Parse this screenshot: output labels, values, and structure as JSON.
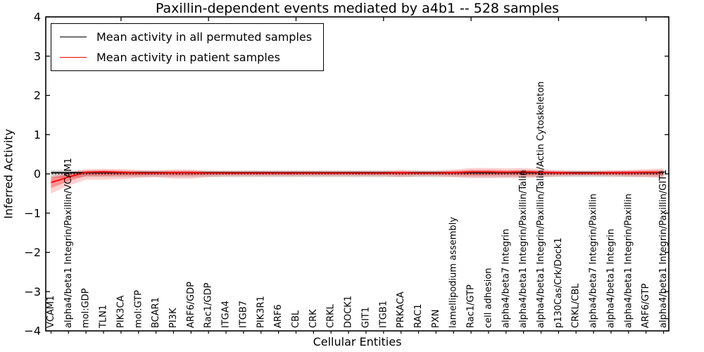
{
  "figure": {
    "background": "#ffffff"
  },
  "chart_data": {
    "type": "line",
    "title": "Paxillin-dependent events mediated by a4b1 -- 528 samples",
    "xlabel": "Cellular Entities",
    "ylabel": "Inferred Activity",
    "ylim": [
      -4,
      4
    ],
    "yticks": [
      4,
      3,
      2,
      1,
      0,
      -1,
      -2,
      -3,
      -4
    ],
    "ytick_labels": [
      "4",
      "3",
      "2",
      "1",
      "0",
      "−1",
      "−2",
      "−3",
      "−4"
    ],
    "grid": false,
    "legend_position": "upper left",
    "zero_line": {
      "y": 0,
      "style": "dotted",
      "color": "#000000"
    },
    "categories": [
      "VCAM1",
      "alpha4/beta1 Integrin/Paxillin/VCAM1",
      "mol:GDP",
      "TLN1",
      "PIK3CA",
      "mol:GTP",
      "BCAR1",
      "PI3K",
      "ARF6/GDP",
      "Rac1/GDP",
      "ITGA4",
      "ITGB7",
      "PIK3R1",
      "ARF6",
      "CBL",
      "CRK",
      "CRKL",
      "DOCK1",
      "GIT1",
      "ITGB1",
      "PRKACA",
      "RAC1",
      "PXN",
      "lamellipodium assembly",
      "Rac1/GTP",
      "cell adhesion",
      "alpha4/beta7 Integrin",
      "alpha4/beta1 Integrin/Paxillin/Talin",
      "alpha4/beta1 Integrin/Paxillin/Talin/Actin Cytoskeleton",
      "p130Cas/Crk/Dock1",
      "CRKL/CBL",
      "alpha4/beta7 Integrin/Paxillin",
      "alpha4/beta1 Integrin",
      "alpha4/beta1 Integrin/Paxillin",
      "ARF6/GTP",
      "alpha4/beta1 Integrin/Paxillin/GIT1"
    ],
    "series": [
      {
        "name": "Mean activity in all permuted samples",
        "color": "#000000",
        "values": [
          0.03,
          0.03,
          0.03,
          0.03,
          0.03,
          0.03,
          0.03,
          0.03,
          0.03,
          0.03,
          0.03,
          0.03,
          0.03,
          0.03,
          0.03,
          0.03,
          0.03,
          0.03,
          0.03,
          0.03,
          0.03,
          0.03,
          0.03,
          0.03,
          0.03,
          0.03,
          0.03,
          0.03,
          0.03,
          0.03,
          0.03,
          0.03,
          0.03,
          0.03,
          0.03,
          0.03
        ]
      },
      {
        "name": "Mean activity in patient samples",
        "color": "#ff0000",
        "values": [
          -0.22,
          -0.08,
          0.04,
          0.05,
          0.04,
          0.02,
          0.02,
          0.03,
          0.03,
          0.02,
          0.02,
          0.02,
          0.02,
          0.02,
          0.02,
          0.02,
          0.02,
          0.02,
          0.02,
          0.02,
          0.03,
          0.02,
          0.02,
          0.03,
          0.05,
          0.05,
          0.04,
          0.05,
          0.04,
          0.03,
          0.02,
          0.02,
          0.03,
          0.03,
          0.04,
          0.04
        ]
      }
    ],
    "bands": [
      {
        "name": "permuted-range",
        "color": "#000000",
        "opacity": 0.15,
        "lower": [
          -0.11,
          -0.1,
          -0.08,
          -0.08,
          -0.08,
          -0.08,
          -0.08,
          -0.08,
          -0.08,
          -0.08,
          -0.08,
          -0.08,
          -0.08,
          -0.08,
          -0.08,
          -0.08,
          -0.08,
          -0.08,
          -0.08,
          -0.08,
          -0.08,
          -0.08,
          -0.08,
          -0.08,
          -0.08,
          -0.08,
          -0.08,
          -0.08,
          -0.08,
          -0.08,
          -0.08,
          -0.08,
          -0.08,
          -0.08,
          -0.08,
          -0.08
        ],
        "upper": [
          0.1,
          0.09,
          0.08,
          0.08,
          0.08,
          0.08,
          0.08,
          0.08,
          0.08,
          0.08,
          0.08,
          0.08,
          0.08,
          0.08,
          0.08,
          0.08,
          0.08,
          0.08,
          0.08,
          0.08,
          0.08,
          0.08,
          0.08,
          0.08,
          0.08,
          0.08,
          0.08,
          0.08,
          0.08,
          0.08,
          0.08,
          0.08,
          0.08,
          0.08,
          0.08,
          0.08
        ]
      },
      {
        "name": "patient-range-outer",
        "color": "#ff0000",
        "opacity": 0.18,
        "lower": [
          -0.5,
          -0.3,
          -0.15,
          -0.15,
          -0.13,
          -0.1,
          -0.08,
          -0.12,
          -0.12,
          -0.08,
          -0.06,
          -0.06,
          -0.06,
          -0.06,
          -0.06,
          -0.06,
          -0.06,
          -0.06,
          -0.06,
          -0.06,
          -0.08,
          -0.06,
          -0.06,
          -0.08,
          -0.11,
          -0.11,
          -0.1,
          -0.11,
          -0.08,
          -0.06,
          -0.05,
          -0.05,
          -0.06,
          -0.07,
          -0.08,
          -0.11
        ],
        "upper": [
          -0.06,
          0.04,
          0.12,
          0.13,
          0.12,
          0.1,
          0.09,
          0.11,
          0.11,
          0.08,
          0.08,
          0.08,
          0.08,
          0.08,
          0.08,
          0.08,
          0.08,
          0.08,
          0.08,
          0.08,
          0.1,
          0.08,
          0.08,
          0.11,
          0.15,
          0.15,
          0.14,
          0.15,
          0.12,
          0.09,
          0.08,
          0.08,
          0.09,
          0.1,
          0.12,
          0.14
        ]
      },
      {
        "name": "patient-range-inner",
        "color": "#ff0000",
        "opacity": 0.3,
        "lower": [
          -0.36,
          -0.19,
          -0.05,
          -0.05,
          -0.04,
          -0.04,
          -0.03,
          -0.04,
          -0.04,
          -0.03,
          -0.02,
          -0.02,
          -0.02,
          -0.02,
          -0.02,
          -0.02,
          -0.02,
          -0.02,
          -0.02,
          -0.02,
          -0.03,
          -0.02,
          -0.02,
          -0.03,
          -0.04,
          -0.04,
          -0.03,
          -0.04,
          -0.03,
          -0.02,
          -0.02,
          -0.02,
          -0.02,
          -0.03,
          -0.03,
          -0.04
        ],
        "upper": [
          -0.1,
          -0.01,
          0.08,
          0.09,
          0.08,
          0.06,
          0.06,
          0.07,
          0.07,
          0.05,
          0.05,
          0.05,
          0.05,
          0.05,
          0.05,
          0.05,
          0.05,
          0.05,
          0.05,
          0.05,
          0.06,
          0.05,
          0.05,
          0.07,
          0.1,
          0.1,
          0.09,
          0.1,
          0.08,
          0.06,
          0.05,
          0.05,
          0.06,
          0.07,
          0.08,
          0.09
        ]
      }
    ]
  }
}
